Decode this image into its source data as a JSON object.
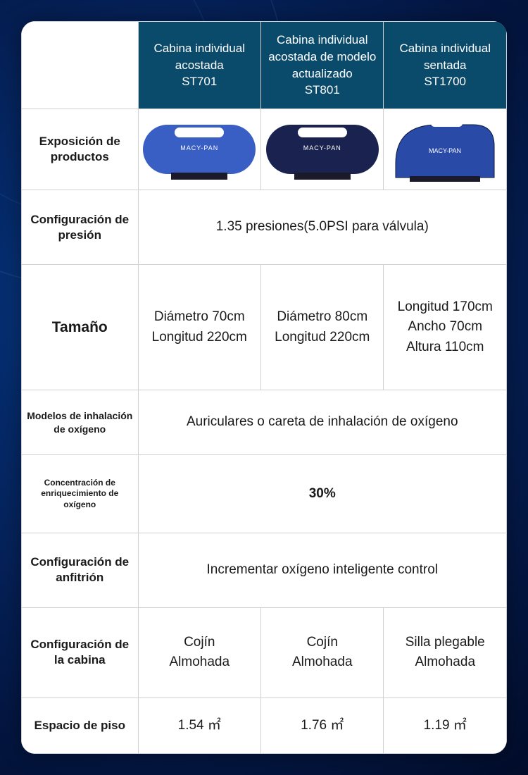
{
  "colors": {
    "header_bg": "#0a4a6a",
    "chamber_blue": "#3a5fc4",
    "chamber_navy": "#1a2350",
    "chamber_sitting": "#2a4aa8"
  },
  "columns": [
    {
      "title": "Cabina individual acostada",
      "model": "ST701"
    },
    {
      "title": "Cabina individual acostada de modelo actualizado",
      "model": "ST801"
    },
    {
      "title": "Cabina individual sentada",
      "model": "ST1700"
    }
  ],
  "rows": {
    "exposure": {
      "label": "Exposición de productos"
    },
    "pressure": {
      "label": "Configuración de presión",
      "value": "1.35 presiones(5.0PSI para válvula)"
    },
    "size": {
      "label": "Tamaño",
      "cells": [
        "Diámetro 70cm\nLongitud 220cm",
        "Diámetro 80cm\nLongitud 220cm",
        "Longitud 170cm\nAncho 70cm\nAltura 110cm"
      ]
    },
    "inhalation": {
      "label": "Modelos de inhalación de oxígeno",
      "value": "Auriculares o careta de inhalación de oxígeno"
    },
    "concentration": {
      "label": "Concentración de enriquecimiento de oxígeno",
      "value": "30%"
    },
    "host": {
      "label": "Configuración de anfitrión",
      "value": "Incrementar oxígeno inteligente control"
    },
    "cabin": {
      "label": "Configuración de la cabina",
      "cells": [
        "Cojín\nAlmohada",
        "Cojín\nAlmohada",
        "Silla plegable\nAlmohada"
      ]
    },
    "floor": {
      "label": "Espacio de piso",
      "cells": [
        "1.54 ㎡",
        "1.76 ㎡",
        "1.19 ㎡"
      ]
    }
  },
  "brand_text": "MACY-PAN"
}
